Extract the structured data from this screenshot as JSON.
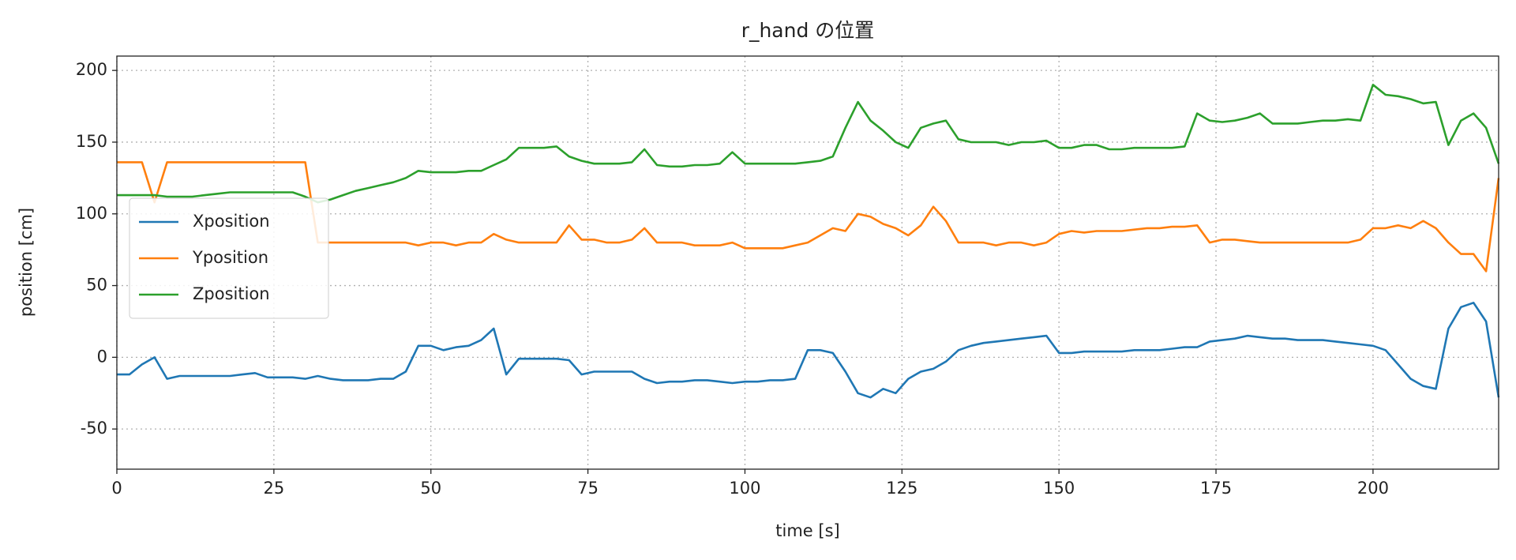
{
  "chart_data": {
    "type": "line",
    "title": "r_hand の位置",
    "x_label": "time [s]",
    "y_label": "position [cm]",
    "x": [
      0,
      2,
      4,
      6,
      8,
      10,
      12,
      14,
      16,
      18,
      20,
      22,
      24,
      26,
      28,
      30,
      32,
      34,
      36,
      38,
      40,
      42,
      44,
      46,
      48,
      50,
      52,
      54,
      56,
      58,
      60,
      62,
      64,
      66,
      68,
      70,
      72,
      74,
      76,
      78,
      80,
      82,
      84,
      86,
      88,
      90,
      92,
      94,
      96,
      98,
      100,
      102,
      104,
      106,
      108,
      110,
      112,
      114,
      116,
      118,
      120,
      122,
      124,
      126,
      128,
      130,
      132,
      134,
      136,
      138,
      140,
      142,
      144,
      146,
      148,
      150,
      152,
      154,
      156,
      158,
      160,
      162,
      164,
      166,
      168,
      170,
      172,
      174,
      176,
      178,
      180,
      182,
      184,
      186,
      188,
      190,
      192,
      194,
      196,
      198,
      200,
      202,
      204,
      206,
      208,
      210,
      212,
      214,
      216,
      218,
      220
    ],
    "series": [
      {
        "name": "Xposition",
        "color": "#1f77b4",
        "values": [
          -12,
          -12,
          -5,
          0,
          -15,
          -13,
          -13,
          -13,
          -13,
          -13,
          -12,
          -11,
          -14,
          -14,
          -14,
          -15,
          -13,
          -15,
          -16,
          -16,
          -16,
          -15,
          -15,
          -10,
          8,
          8,
          5,
          7,
          8,
          12,
          20,
          -12,
          -1,
          -1,
          -1,
          -1,
          -2,
          -12,
          -10,
          -10,
          -10,
          -10,
          -15,
          -18,
          -17,
          -17,
          -16,
          -16,
          -17,
          -18,
          -17,
          -17,
          -16,
          -16,
          -15,
          5,
          5,
          3,
          -10,
          -25,
          -28,
          -22,
          -25,
          -15,
          -10,
          -8,
          -3,
          5,
          8,
          10,
          11,
          12,
          13,
          14,
          15,
          3,
          3,
          4,
          4,
          4,
          4,
          5,
          5,
          5,
          6,
          7,
          7,
          11,
          12,
          13,
          15,
          14,
          13,
          13,
          12,
          12,
          12,
          11,
          10,
          9,
          8,
          5,
          -5,
          -15,
          -20,
          -22,
          20,
          35,
          38,
          25,
          -28
        ]
      },
      {
        "name": "Yposition",
        "color": "#ff7f0e",
        "values": [
          136,
          136,
          136,
          108,
          136,
          136,
          136,
          136,
          136,
          136,
          136,
          136,
          136,
          136,
          136,
          136,
          80,
          80,
          80,
          80,
          80,
          80,
          80,
          80,
          78,
          80,
          80,
          78,
          80,
          80,
          86,
          82,
          80,
          80,
          80,
          80,
          92,
          82,
          82,
          80,
          80,
          82,
          90,
          80,
          80,
          80,
          78,
          78,
          78,
          80,
          76,
          76,
          76,
          76,
          78,
          80,
          85,
          90,
          88,
          100,
          98,
          93,
          90,
          85,
          92,
          105,
          95,
          80,
          80,
          80,
          78,
          80,
          80,
          78,
          80,
          86,
          88,
          87,
          88,
          88,
          88,
          89,
          90,
          90,
          91,
          91,
          92,
          80,
          82,
          82,
          81,
          80,
          80,
          80,
          80,
          80,
          80,
          80,
          80,
          82,
          90,
          90,
          92,
          90,
          95,
          90,
          80,
          72,
          72,
          60,
          125
        ]
      },
      {
        "name": "Zposition",
        "color": "#2ca02c",
        "values": [
          113,
          113,
          113,
          113,
          112,
          112,
          112,
          113,
          114,
          115,
          115,
          115,
          115,
          115,
          115,
          112,
          108,
          110,
          113,
          116,
          118,
          120,
          122,
          125,
          130,
          129,
          129,
          129,
          130,
          130,
          134,
          138,
          146,
          146,
          146,
          147,
          140,
          137,
          135,
          135,
          135,
          136,
          145,
          134,
          133,
          133,
          134,
          134,
          135,
          143,
          135,
          135,
          135,
          135,
          135,
          136,
          137,
          140,
          160,
          178,
          165,
          158,
          150,
          146,
          160,
          163,
          165,
          152,
          150,
          150,
          150,
          148,
          150,
          150,
          151,
          146,
          146,
          148,
          148,
          145,
          145,
          146,
          146,
          146,
          146,
          147,
          170,
          165,
          164,
          165,
          167,
          170,
          163,
          163,
          163,
          164,
          165,
          165,
          166,
          165,
          190,
          183,
          182,
          180,
          177,
          178,
          148,
          165,
          170,
          160,
          135
        ]
      }
    ],
    "xlim": [
      0,
      220
    ],
    "xticks": [
      0,
      25,
      50,
      75,
      100,
      125,
      150,
      175,
      200
    ],
    "ylim": [
      -78,
      210
    ],
    "yticks": [
      -50,
      0,
      50,
      100,
      150,
      200
    ],
    "grid": true,
    "legend": "left"
  }
}
